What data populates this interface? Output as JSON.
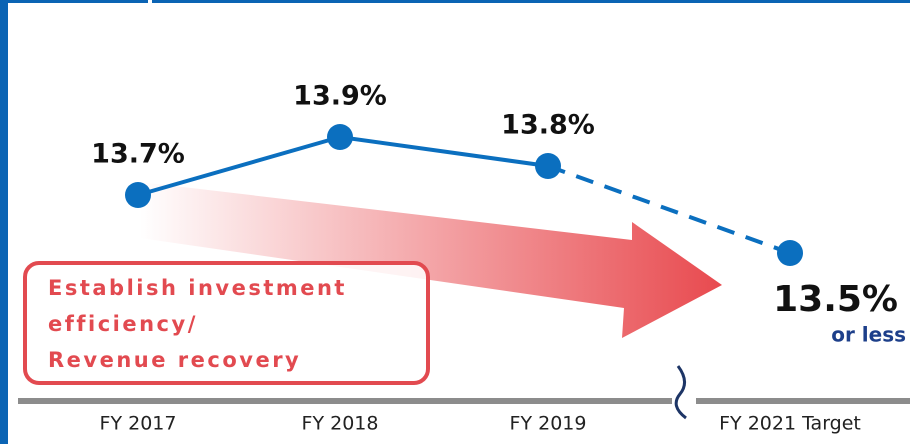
{
  "chart_data": {
    "type": "line",
    "categories": [
      "FY 2017",
      "FY 2018",
      "FY 2019",
      "FY 2021 Target"
    ],
    "series": [
      {
        "color": "#0b6fbf",
        "values": [
          13.7,
          13.9,
          13.8,
          13.5
        ],
        "value_labels": [
          "13.7%",
          "13.9%",
          "13.8%",
          "13.5%"
        ]
      }
    ],
    "ylim": [
      13.0,
      14.4
    ],
    "target_note": "or less",
    "annotation": [
      "Establish investment",
      "efficiency/",
      "Revenue recovery"
    ]
  }
}
